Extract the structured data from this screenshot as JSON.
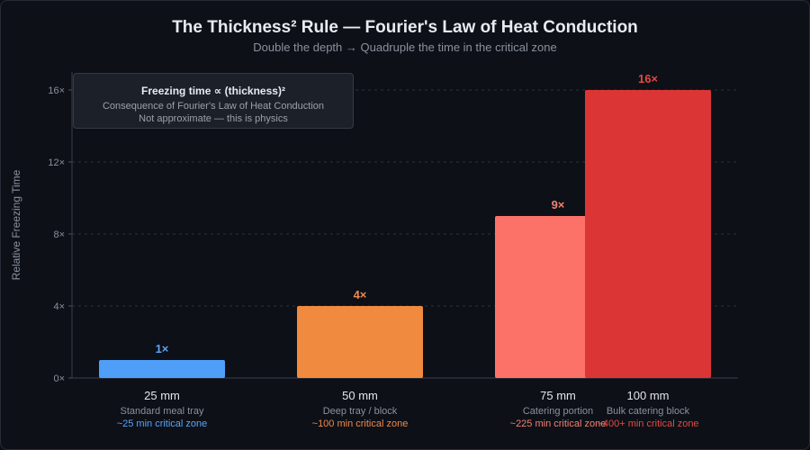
{
  "chart_data": {
    "type": "bar",
    "title": "The Thickness² Rule — Fourier's Law of Heat Conduction",
    "subtitle": "Double the depth → Quadruple the time in the critical zone",
    "ylabel": "Relative Freezing Time",
    "xlabel": "",
    "ylim": [
      0,
      17
    ],
    "yticks": [
      0,
      4,
      8,
      12,
      16
    ],
    "ytick_labels": [
      "0×",
      "4×",
      "8×",
      "12×",
      "16×"
    ],
    "grid": true,
    "categories": [
      "25 mm",
      "50 mm",
      "75 mm",
      "100 mm"
    ],
    "values": [
      1,
      4,
      9,
      16
    ],
    "value_labels": [
      "1×",
      "4×",
      "9×",
      "16×"
    ],
    "descriptions": [
      "Standard meal tray",
      "Deep tray / block",
      "Catering portion",
      "Bulk catering block"
    ],
    "zones": [
      "~25 min critical zone",
      "~100 min critical zone",
      "~225 min critical zone",
      "~400+ min critical zone"
    ],
    "colors": [
      "#4f9ef8",
      "#f08a3e",
      "#fc7268",
      "#dc3535"
    ],
    "label_colors": [
      "#5aa5f8",
      "#f0894a",
      "#f48070",
      "#e24a44"
    ],
    "annotation": {
      "title": "Freezing time ∝ (thickness)²",
      "lines": [
        "Consequence of Fourier's Law of Heat Conduction",
        "Not approximate — this is physics"
      ]
    }
  }
}
